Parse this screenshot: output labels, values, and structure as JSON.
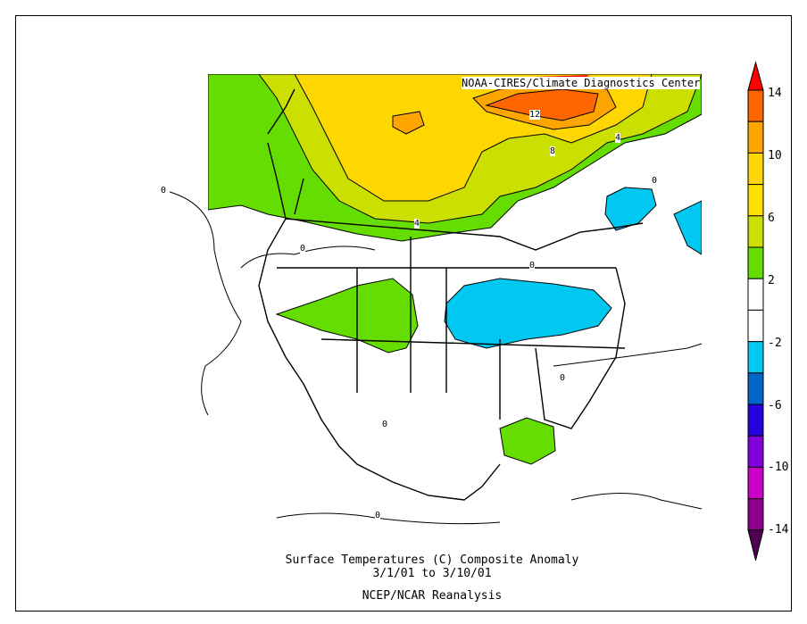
{
  "credit": "NOAA-CIRES/Climate Diagnostics Center",
  "title": {
    "line1": "Surface Temperatures (C)   Composite Anomaly",
    "line2": "3/1/01  to 3/10/01",
    "line3": "NCEP/NCAR Reanalysis"
  },
  "colorbar": {
    "labels": [
      "14",
      "10",
      "6",
      "2",
      "-2",
      "-6",
      "-10",
      "-14"
    ],
    "colors": [
      "#ff0000",
      "#ff6600",
      "#ffa500",
      "#ffd700",
      "#ffe000",
      "#cbe000",
      "#66dd00",
      "#ffffff",
      "#ffffff",
      "#00c8f0",
      "#0064c8",
      "#2800dc",
      "#8200dc",
      "#c800c8",
      "#8c008c",
      "#500050"
    ]
  },
  "contour_labels": [
    "12",
    "8",
    "4",
    "4",
    "0",
    "0",
    "0",
    "0",
    "0",
    "0",
    "0"
  ]
}
